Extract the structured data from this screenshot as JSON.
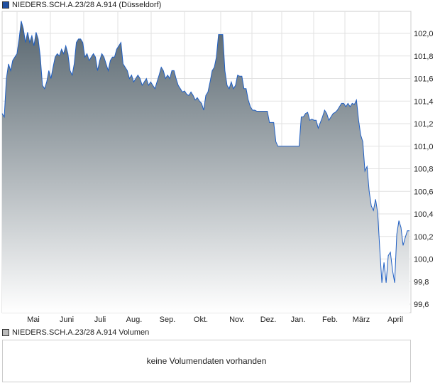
{
  "legend": {
    "price": "NIEDERS.SCH.A.23/28 A.914 (Düsseldorf)",
    "volume": "NIEDERS.SCH.A.23/28 A.914 Volumen"
  },
  "volume_message": "keine Volumendaten vorhanden",
  "colors": {
    "line": "#1f5fc4",
    "fill_top": "#58666f",
    "fill_bottom": "#ffffff",
    "grid": "#dddddd",
    "price_swatch": "#1f4fa0",
    "volume_swatch": "#bbbbbb"
  },
  "chart_data": {
    "type": "area",
    "title": "NIEDERS.SCH.A.23/28 A.914 (Düsseldorf)",
    "xlabel": "",
    "ylabel": "",
    "ylim": [
      99.55,
      102.2
    ],
    "yticks": [
      "102,0",
      "101,8",
      "101,6",
      "101,4",
      "101,2",
      "101,0",
      "100,8",
      "100,6",
      "100,4",
      "100,2",
      "100,0",
      "99,8",
      "99,6"
    ],
    "ytick_values": [
      102.0,
      101.8,
      101.6,
      101.4,
      101.2,
      101.0,
      100.8,
      100.6,
      100.4,
      100.2,
      100.0,
      99.8,
      99.6
    ],
    "xticks": [
      "Mai",
      "Juni",
      "Juli",
      "Aug.",
      "Sep.",
      "Okt.",
      "Nov.",
      "Dez.",
      "Jan.",
      "Feb.",
      "März",
      "April"
    ],
    "grid": true,
    "legend": "top-left",
    "values": [
      101.29,
      101.26,
      101.6,
      101.73,
      101.67,
      101.76,
      101.79,
      101.82,
      101.95,
      102.11,
      102.04,
      101.92,
      102.01,
      101.92,
      101.98,
      101.89,
      102.01,
      101.95,
      101.79,
      101.54,
      101.51,
      101.57,
      101.67,
      101.6,
      101.7,
      101.79,
      101.82,
      101.8,
      101.86,
      101.82,
      101.89,
      101.82,
      101.67,
      101.63,
      101.73,
      101.92,
      101.95,
      101.95,
      101.92,
      101.79,
      101.82,
      101.76,
      101.79,
      101.82,
      101.79,
      101.67,
      101.76,
      101.82,
      101.79,
      101.73,
      101.67,
      101.76,
      101.79,
      101.79,
      101.86,
      101.89,
      101.92,
      101.73,
      101.7,
      101.67,
      101.6,
      101.63,
      101.57,
      101.6,
      101.63,
      101.6,
      101.54,
      101.57,
      101.6,
      101.54,
      101.57,
      101.54,
      101.51,
      101.57,
      101.63,
      101.7,
      101.67,
      101.6,
      101.63,
      101.6,
      101.67,
      101.67,
      101.6,
      101.54,
      101.51,
      101.48,
      101.49,
      101.46,
      101.45,
      101.48,
      101.45,
      101.41,
      101.43,
      101.4,
      101.38,
      101.32,
      101.45,
      101.48,
      101.57,
      101.67,
      101.7,
      101.79,
      101.99,
      101.99,
      101.99,
      101.67,
      101.54,
      101.51,
      101.57,
      101.51,
      101.54,
      101.63,
      101.62,
      101.62,
      101.51,
      101.51,
      101.41,
      101.35,
      101.32,
      101.32,
      101.31,
      101.31,
      101.31,
      101.31,
      101.31,
      101.31,
      101.21,
      101.21,
      101.21,
      101.04,
      101.0,
      101.0,
      101.0,
      101.0,
      101.0,
      101.0,
      101.0,
      101.0,
      101.0,
      101.0,
      101.0,
      101.26,
      101.26,
      101.29,
      101.3,
      101.23,
      101.24,
      101.23,
      101.23,
      101.16,
      101.21,
      101.26,
      101.32,
      101.29,
      101.23,
      101.26,
      101.29,
      101.3,
      101.32,
      101.35,
      101.38,
      101.38,
      101.35,
      101.38,
      101.35,
      101.38,
      101.37,
      101.41,
      101.23,
      101.1,
      101.04,
      100.78,
      100.82,
      100.6,
      100.47,
      100.43,
      100.53,
      100.41,
      100.09,
      99.79,
      99.97,
      99.79,
      100.03,
      100.06,
      99.9,
      99.79,
      100.22,
      100.34,
      100.28,
      100.12,
      100.19,
      100.25,
      100.25
    ]
  }
}
